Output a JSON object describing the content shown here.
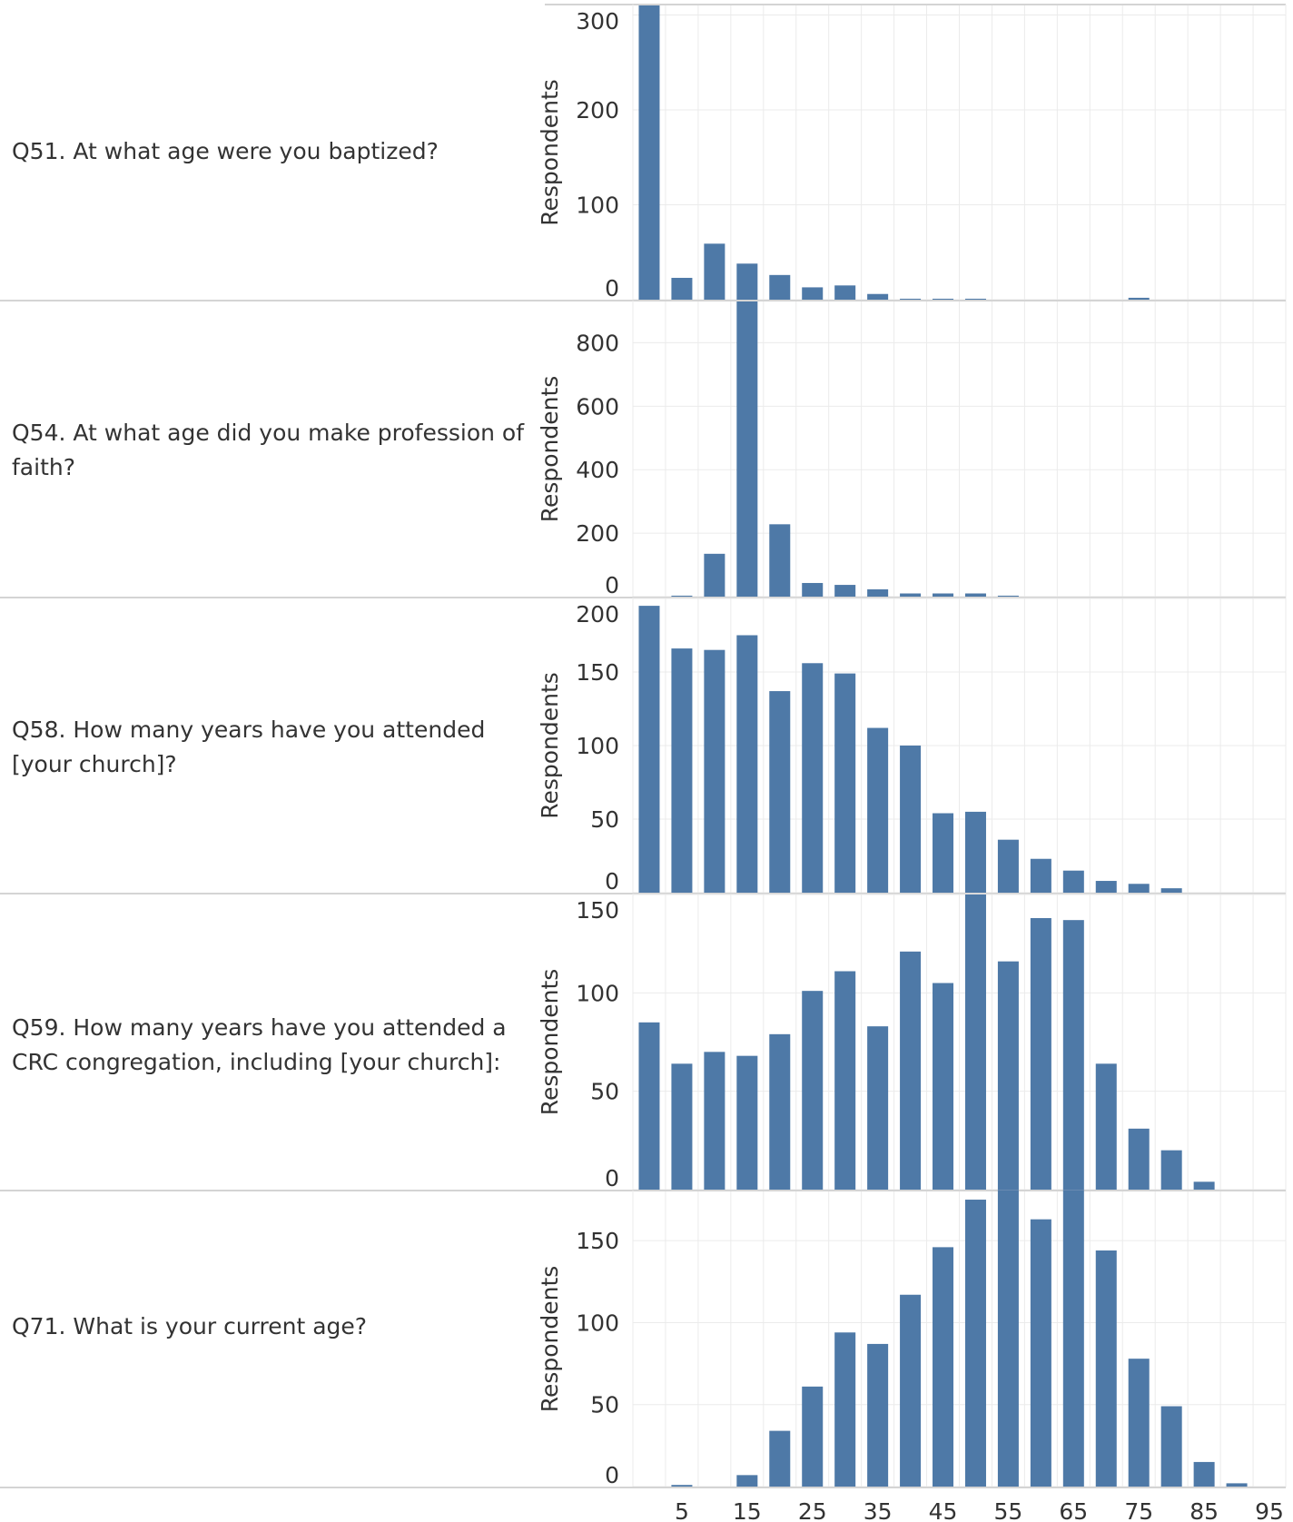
{
  "colors": {
    "bar": "#4e79a7",
    "grid": "#ebebeb",
    "rule": "#d4d4d4",
    "text": "#333333"
  },
  "chart_data": {
    "type": "bar",
    "grid": true,
    "x_ticks": [
      5,
      15,
      25,
      35,
      45,
      55,
      65,
      75,
      85,
      95
    ],
    "x_range": [
      0,
      100
    ],
    "bin_width": 5,
    "ylabel": "Respondents",
    "panels": [
      {
        "question": "Q51. At what age were you baptized?",
        "ylim": [
          0,
          310
        ],
        "y_ticks": [
          0,
          100,
          200,
          300
        ],
        "x": [
          0,
          5,
          10,
          15,
          20,
          25,
          30,
          35,
          40,
          45,
          50,
          75
        ],
        "values": [
          310,
          23,
          59,
          38,
          26,
          13,
          15,
          6,
          1,
          1,
          1,
          2
        ]
      },
      {
        "question": "Q54. At what age did you make profession of faith?",
        "ylim": [
          0,
          930
        ],
        "y_ticks": [
          0,
          200,
          400,
          600,
          800
        ],
        "x": [
          5,
          10,
          15,
          20,
          25,
          30,
          35,
          40,
          45,
          50,
          55
        ],
        "values": [
          3,
          135,
          930,
          228,
          43,
          37,
          23,
          10,
          10,
          10,
          3
        ]
      },
      {
        "question": "Q58. How many years have you attended [your church]?",
        "ylim": [
          0,
          200
        ],
        "y_ticks": [
          0,
          50,
          100,
          150,
          200
        ],
        "x": [
          0,
          5,
          10,
          15,
          20,
          25,
          30,
          35,
          40,
          45,
          50,
          55,
          60,
          65,
          70,
          75,
          80
        ],
        "values": [
          195,
          166,
          165,
          175,
          137,
          156,
          149,
          112,
          100,
          54,
          55,
          36,
          23,
          15,
          8,
          6,
          3
        ]
      },
      {
        "question": "Q59. How many years have you attended a CRC congregation, including [your church]:",
        "ylim": [
          0,
          150
        ],
        "y_ticks": [
          0,
          50,
          100,
          150
        ],
        "x": [
          0,
          5,
          10,
          15,
          20,
          25,
          30,
          35,
          40,
          45,
          50,
          55,
          60,
          65,
          70,
          75,
          80,
          85
        ],
        "values": [
          85,
          64,
          70,
          68,
          79,
          101,
          111,
          83,
          121,
          105,
          150,
          116,
          138,
          137,
          64,
          31,
          20,
          4
        ]
      },
      {
        "question": "Q71. What is your current age?",
        "ylim": [
          0,
          180
        ],
        "y_ticks": [
          0,
          50,
          100,
          150
        ],
        "x": [
          5,
          15,
          20,
          25,
          30,
          35,
          40,
          45,
          50,
          55,
          60,
          65,
          70,
          75,
          80,
          85,
          90
        ],
        "values": [
          1,
          7,
          34,
          61,
          94,
          87,
          117,
          146,
          175,
          181,
          163,
          181,
          144,
          78,
          49,
          15,
          2
        ]
      }
    ]
  }
}
